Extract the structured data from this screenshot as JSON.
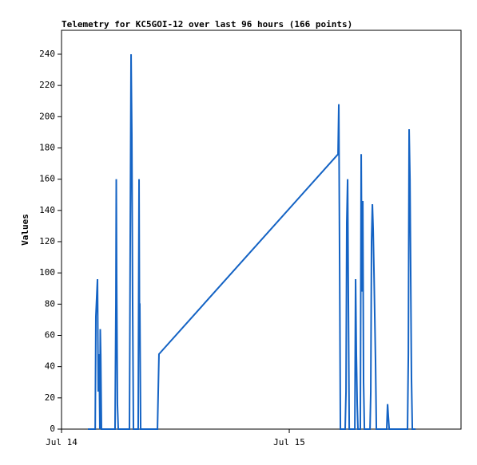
{
  "chart_data": {
    "type": "line",
    "title": "Telemetry for KC5GOI-12 over last 96 hours (166 points)",
    "y_label": "Values",
    "x": [
      2.78,
      3.55,
      3.62,
      3.79,
      3.87,
      3.96,
      4.04,
      4.08,
      4.13,
      4.21,
      5.64,
      5.73,
      5.77,
      5.81,
      5.89,
      5.98,
      7.16,
      7.24,
      7.33,
      7.41,
      7.49,
      7.58,
      8.08,
      8.17,
      8.21,
      8.25,
      8.34,
      10.11,
      10.19,
      10.27,
      29.14,
      29.22,
      29.31,
      29.39,
      29.89,
      29.98,
      30.06,
      30.15,
      30.23,
      30.32,
      30.91,
      30.99,
      31.07,
      31.16,
      31.24,
      31.49,
      31.58,
      31.66,
      31.75,
      31.83,
      31.92,
      32.51,
      32.59,
      32.67,
      32.76,
      32.84,
      32.93,
      33.01,
      33.09,
      33.18,
      34.27,
      34.36,
      34.44,
      34.53,
      36.46,
      36.55,
      36.63,
      36.72,
      36.8,
      36.88,
      36.97,
      37.31
    ],
    "series": [
      {
        "color": "#1463c4",
        "values": [
          0,
          0,
          72,
          96,
          24,
          48,
          0,
          64,
          48,
          0,
          0,
          80,
          160,
          96,
          16,
          0,
          0,
          120,
          240,
          188,
          84,
          0,
          0,
          160,
          80,
          80,
          0,
          0,
          24,
          48,
          176,
          208,
          104,
          0,
          0,
          24,
          132,
          160,
          80,
          0,
          0,
          96,
          48,
          16,
          0,
          0,
          176,
          88,
          146,
          30,
          0,
          0,
          24,
          120,
          144,
          128,
          100,
          72,
          44,
          0,
          0,
          16,
          8,
          0,
          0,
          48,
          192,
          160,
          96,
          32,
          0,
          0
        ]
      }
    ],
    "xlim": [
      0,
      42.1
    ],
    "xticks": [
      {
        "value": 0,
        "label": "Jul 14"
      },
      {
        "value": 24,
        "label": "Jul 15"
      }
    ],
    "ylim": [
      0,
      255.3
    ],
    "yticks": [
      0,
      20,
      40,
      60,
      80,
      100,
      120,
      140,
      160,
      180,
      200,
      220,
      240
    ]
  }
}
